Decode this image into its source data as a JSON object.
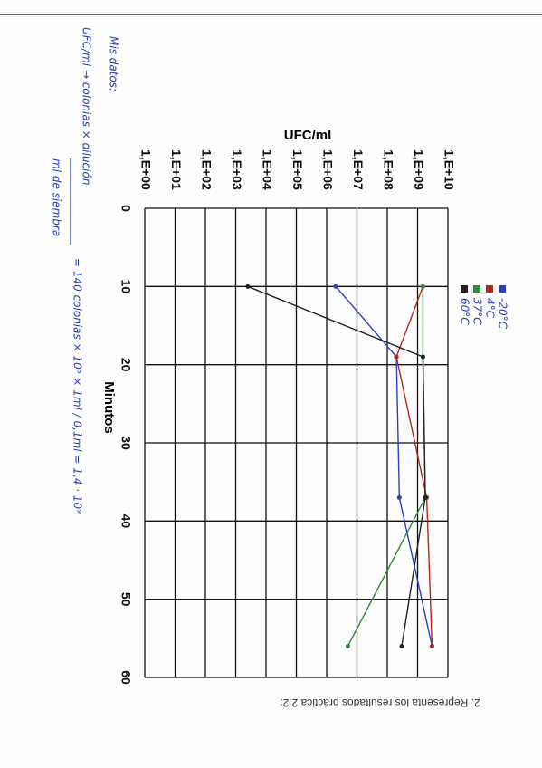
{
  "instruction": "2. Representa los resultados práctica 2.2:",
  "notes": [
    "Mis datos:",
    "UFC/ml → colonias × dilución",
    "ml de siembra",
    "= 140 colonias × 10⁸ × 1ml / 0,1ml = 1,4 · 10⁹"
  ],
  "chart_data": {
    "type": "line",
    "title": "UFC/ml",
    "x_label": "Minutos",
    "x": [
      10,
      19,
      37,
      56
    ],
    "xlim": [
      0,
      60
    ],
    "xticks": [
      0,
      10,
      20,
      30,
      40,
      50,
      60
    ],
    "ylim": [
      1,
      10000000000
    ],
    "log_scale": true,
    "grid": true,
    "yticks": [
      {
        "value": 1,
        "label": "1,E+00"
      },
      {
        "value": 10,
        "label": "1,E+01"
      },
      {
        "value": 100,
        "label": "1,E+02"
      },
      {
        "value": 1000,
        "label": "1,E+03"
      },
      {
        "value": 10000,
        "label": "1,E+04"
      },
      {
        "value": 100000,
        "label": "1,E+05"
      },
      {
        "value": 1000000,
        "label": "1,E+06"
      },
      {
        "value": 10000000,
        "label": "1,E+07"
      },
      {
        "value": 100000000,
        "label": "1,E+08"
      },
      {
        "value": 1000000000,
        "label": "1,E+09"
      },
      {
        "value": 10000000000,
        "label": "1,E+10"
      }
    ],
    "series": [
      {
        "name": "-20°C",
        "color": "#2f3fc0",
        "values": [
          2000000,
          200000000,
          250000000,
          3000000000
        ]
      },
      {
        "name": "4°C",
        "color": "#b02a1a",
        "values": [
          1500000000,
          200000000,
          2000000000,
          3000000000
        ]
      },
      {
        "name": "37°C",
        "color": "#2a8a3a",
        "values": [
          1500000000,
          1500000000,
          1800000000,
          5000000
        ]
      },
      {
        "name": "60°C",
        "color": "#222222",
        "values": [
          2500,
          1500000000,
          1800000000,
          300000000
        ]
      }
    ]
  }
}
